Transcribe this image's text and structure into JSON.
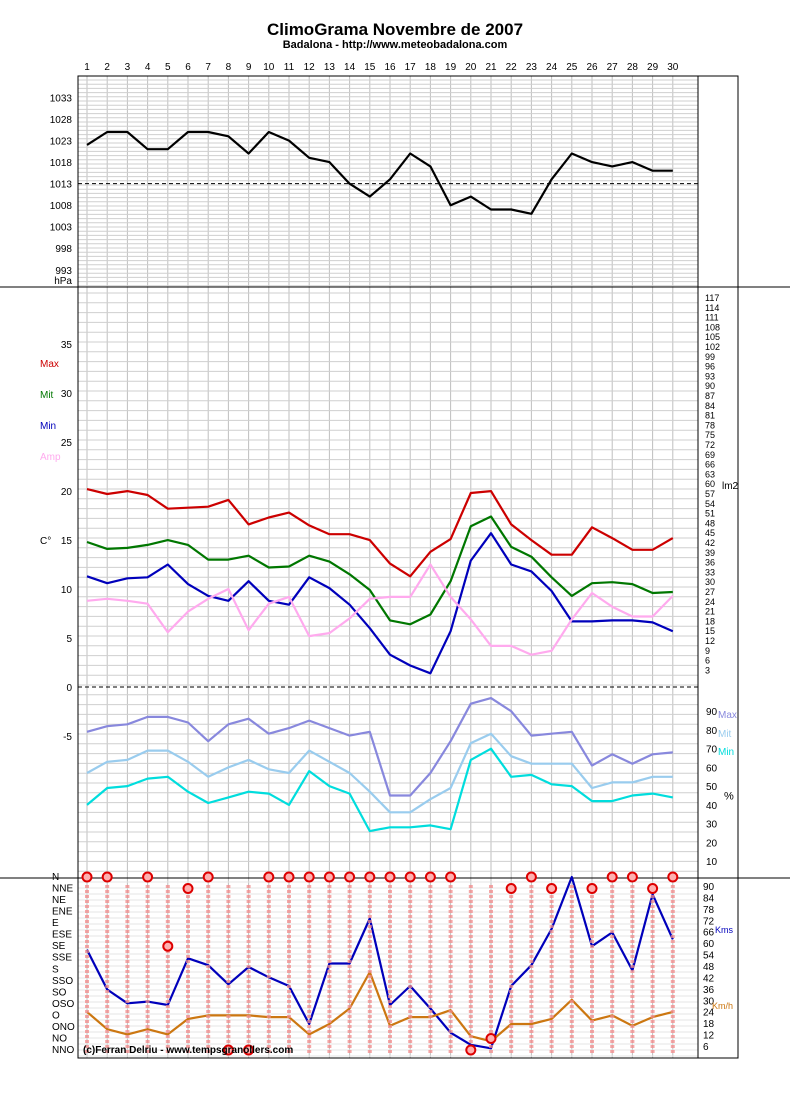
{
  "title": "ClimoGrama Novembre de 2007",
  "subtitle": "Badalona - http://www.meteobadalona.com",
  "credit": "(c)Ferran Delriu - www.tempsgranollers.com",
  "days": [
    "1",
    "2",
    "3",
    "4",
    "5",
    "6",
    "7",
    "8",
    "9",
    "10",
    "11",
    "12",
    "13",
    "14",
    "15",
    "16",
    "17",
    "18",
    "19",
    "20",
    "21",
    "22",
    "23",
    "24",
    "25",
    "26",
    "27",
    "28",
    "29",
    "30"
  ],
  "chart_data": [
    {
      "type": "line",
      "name": "pressure",
      "unit_label": "hPa",
      "y_ticks": [
        "1033",
        "1028",
        "1023",
        "1018",
        "1013",
        "1008",
        "1003",
        "998",
        "993"
      ],
      "ylim": [
        989,
        1038
      ],
      "reference_line": 1013,
      "series": [
        {
          "color": "#000000",
          "values": [
            1022,
            1025,
            1025,
            1021,
            1021,
            1025,
            1025,
            1024,
            1020,
            1025,
            1023,
            1019,
            1018,
            1013,
            1010,
            1014,
            1020,
            1017,
            1008,
            1010,
            1007,
            1007,
            1006,
            1014,
            1020,
            1018,
            1017,
            1018,
            1016,
            1016
          ]
        }
      ]
    },
    {
      "type": "line",
      "name": "temperature",
      "unit_label": "C°",
      "y_ticks": [
        "35",
        "30",
        "25",
        "20",
        "15",
        "10",
        "5",
        "0",
        "-5"
      ],
      "right_axis_label": "lm2",
      "right_ticks": [
        "117",
        "114",
        "111",
        "108",
        "105",
        "102",
        "99",
        "96",
        "93",
        "90",
        "87",
        "84",
        "81",
        "78",
        "75",
        "72",
        "69",
        "66",
        "63",
        "60",
        "57",
        "54",
        "51",
        "48",
        "45",
        "42",
        "39",
        "36",
        "33",
        "30",
        "27",
        "24",
        "21",
        "18",
        "15",
        "12",
        "9",
        "6",
        "3"
      ],
      "ylim": [
        -10,
        39.5
      ],
      "reference_line": 0,
      "legend": [
        "Max",
        "Mit",
        "Min",
        "Amp"
      ],
      "series": [
        {
          "name": "Max",
          "color": "#cc0000",
          "values": [
            20.2,
            19.7,
            20.0,
            19.6,
            18.2,
            18.3,
            18.4,
            19.1,
            16.6,
            17.3,
            17.8,
            16.5,
            15.6,
            15.6,
            15.0,
            12.6,
            11.3,
            13.8,
            15.1,
            19.8,
            20.0,
            16.6,
            15.0,
            13.5,
            13.5,
            16.3,
            15.2,
            14.0,
            14.0,
            15.2
          ]
        },
        {
          "name": "Mit",
          "color": "#007700",
          "values": [
            14.8,
            14.1,
            14.2,
            14.5,
            15.0,
            14.5,
            13.0,
            13.0,
            13.4,
            12.2,
            12.3,
            13.4,
            12.8,
            11.5,
            9.9,
            6.8,
            6.4,
            7.4,
            10.8,
            16.4,
            17.4,
            14.3,
            13.3,
            11.2,
            9.3,
            10.6,
            10.7,
            10.5,
            9.6,
            9.7
          ]
        },
        {
          "name": "Min",
          "color": "#0000bb",
          "values": [
            11.3,
            10.6,
            11.1,
            11.2,
            12.5,
            10.5,
            9.3,
            8.8,
            10.8,
            8.8,
            8.4,
            11.2,
            10.1,
            8.4,
            6.0,
            3.3,
            2.2,
            1.4,
            5.7,
            12.9,
            15.7,
            12.5,
            11.8,
            9.8,
            6.7,
            6.7,
            6.8,
            6.8,
            6.6,
            5.7
          ]
        },
        {
          "name": "Amp",
          "color": "#ffaaee",
          "values": [
            8.8,
            9.0,
            8.8,
            8.5,
            5.6,
            7.7,
            9.0,
            10.0,
            5.8,
            8.5,
            9.2,
            5.2,
            5.5,
            7.0,
            9.0,
            9.2,
            9.2,
            12.5,
            9.2,
            6.9,
            4.2,
            4.2,
            3.3,
            3.7,
            6.9,
            9.6,
            8.2,
            7.2,
            7.2,
            9.3
          ]
        }
      ]
    },
    {
      "type": "line",
      "name": "humidity",
      "unit_label": "%",
      "y_ticks": [
        "90",
        "80",
        "70",
        "60",
        "50",
        "40",
        "30",
        "20",
        "10"
      ],
      "ylim": [
        2,
        96
      ],
      "legend": [
        "Max",
        "Mit",
        "Min"
      ],
      "series": [
        {
          "name": "Max",
          "color": "#8888dd",
          "values": [
            79,
            82,
            83,
            87,
            87,
            84,
            74,
            83,
            86,
            78,
            81,
            85,
            81,
            77,
            79,
            45,
            45,
            57,
            74,
            94,
            97,
            90,
            77,
            78,
            79,
            61,
            67,
            62,
            67,
            68
          ]
        },
        {
          "name": "Mit",
          "color": "#99ccee",
          "values": [
            57,
            63,
            64,
            69,
            69,
            63,
            55,
            60,
            64,
            59,
            57,
            69,
            63,
            57,
            47,
            36,
            36,
            43,
            49,
            73,
            78,
            66,
            62,
            62,
            62,
            49,
            52,
            52,
            55,
            55
          ]
        },
        {
          "name": "Min",
          "color": "#00dddd",
          "values": [
            40,
            49,
            50,
            54,
            55,
            47,
            41,
            44,
            47,
            46,
            40,
            58,
            50,
            46,
            26,
            28,
            28,
            29,
            27,
            64,
            70,
            55,
            56,
            51,
            50,
            42,
            42,
            45,
            46,
            44
          ]
        }
      ]
    },
    {
      "type": "line",
      "name": "wind",
      "direction_ticks": [
        "N",
        "NNE",
        "NE",
        "ENE",
        "E",
        "ESE",
        "SE",
        "SSE",
        "S",
        "SSO",
        "SO",
        "OSO",
        "O",
        "ONO",
        "NO",
        "NNO"
      ],
      "speed_ticks": [
        "90",
        "84",
        "78",
        "72",
        "66",
        "60",
        "54",
        "48",
        "42",
        "36",
        "30",
        "24",
        "18",
        "12",
        "6"
      ],
      "speed_unit": "Kms",
      "gust_unit": "Km/h",
      "ylim": [
        0,
        100
      ],
      "series": [
        {
          "name": "Kms",
          "color": "#0000bb",
          "values": [
            58,
            35,
            27,
            28,
            26,
            53,
            49,
            38,
            48,
            42,
            37,
            15,
            50,
            50,
            76,
            26,
            37,
            24,
            10,
            3,
            1,
            37,
            49,
            70,
            100,
            60,
            68,
            46,
            90,
            64
          ]
        },
        {
          "name": "Km/h",
          "color": "#cc7711",
          "values": [
            22,
            12,
            9,
            12,
            9,
            18,
            20,
            20,
            20,
            19,
            19,
            9,
            15,
            24,
            45,
            14,
            19,
            19,
            23,
            8,
            5,
            15,
            15,
            18,
            29,
            17,
            20,
            14,
            19,
            22
          ]
        }
      ],
      "dominant_direction": [
        "N",
        "N",
        "",
        "N",
        "SE",
        "NNE",
        "N",
        "NNO",
        "NNO",
        "N",
        "N",
        "N",
        "N",
        "N",
        "N",
        "N",
        "N",
        "N",
        "N",
        "NNO",
        "NO",
        "NNE",
        "N",
        "NNE",
        "",
        "NNE",
        "N",
        "N",
        "NNE",
        "N"
      ]
    }
  ]
}
